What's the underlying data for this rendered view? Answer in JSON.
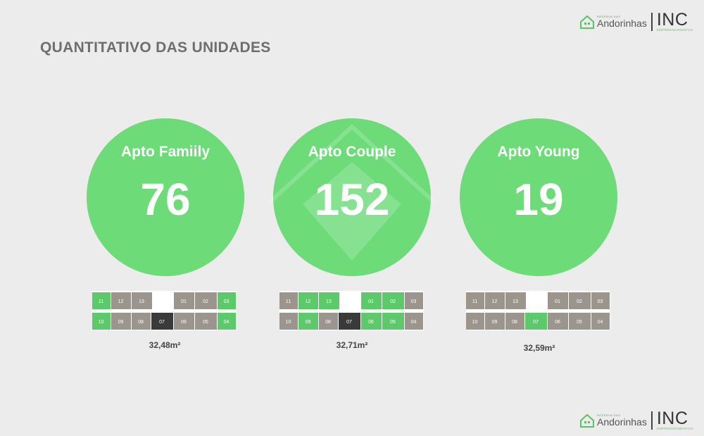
{
  "page": {
    "title": "QUANTITATIVO DAS UNIDADES"
  },
  "logo": {
    "brand_small": "RESERVA DAS",
    "brand_name": "Andorinhas",
    "company": "INC",
    "company_sub": "EMPREENDIMENTOS"
  },
  "units": [
    {
      "label": "Apto Famiily",
      "value": "76",
      "area": "32,48m²"
    },
    {
      "label": "Apto Couple",
      "value": "152",
      "area": "32,71m²"
    },
    {
      "label": "Apto Young",
      "value": "19",
      "area": "32,59m²"
    }
  ],
  "plans": {
    "top_labels": [
      "11",
      "12",
      "13",
      "01",
      "02",
      "03"
    ],
    "bottom_labels": [
      "10",
      "09",
      "08",
      "07",
      "06",
      "05",
      "04"
    ],
    "plan_family_green": [
      "11",
      "03",
      "10",
      "04"
    ],
    "plan_couple_green": [
      "12",
      "13",
      "01",
      "02",
      "09",
      "06",
      "05"
    ],
    "plan_young_green": [
      "07"
    ]
  },
  "colors": {
    "background": "#ececec",
    "circle": "#6cdb78",
    "title": "#6e6e6e",
    "unit_green": "#5cc96a",
    "unit_dark": "#3a3a3a",
    "unit_gray": "#9b958d"
  }
}
